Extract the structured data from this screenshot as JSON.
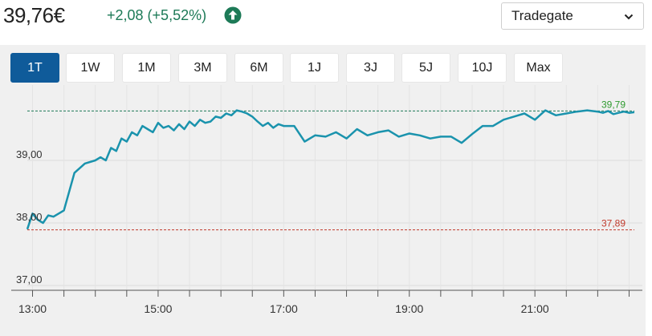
{
  "header": {
    "price": "39,76€",
    "change": "+2,08 (+5,52%)",
    "trend_icon": "arrow-up-circle-icon",
    "trend_color": "#1d7a57"
  },
  "exchange": {
    "selected": "Tradegate",
    "icon": "chevron-down-icon"
  },
  "range_tabs": [
    {
      "label": "1T",
      "active": true
    },
    {
      "label": "1W",
      "active": false
    },
    {
      "label": "1M",
      "active": false
    },
    {
      "label": "3M",
      "active": false
    },
    {
      "label": "6M",
      "active": false
    },
    {
      "label": "1J",
      "active": false
    },
    {
      "label": "3J",
      "active": false
    },
    {
      "label": "5J",
      "active": false
    },
    {
      "label": "10J",
      "active": false
    },
    {
      "label": "Max",
      "active": false
    }
  ],
  "colors": {
    "line": "#1a93ad",
    "high_line": "#1d7a57",
    "high_label": "#2e9a2e",
    "low_line": "#c0392b",
    "low_label": "#c0392b",
    "active_tab": "#0f5b9a"
  },
  "chart_data": {
    "type": "line",
    "grid": true,
    "ylim": [
      37.0,
      40.0
    ],
    "xlim": [
      "12:55",
      "22:35"
    ],
    "x_ticks": [
      "13:00",
      "15:00",
      "17:00",
      "19:00",
      "21:00"
    ],
    "y_ticks": [
      {
        "value": 37.0,
        "label": "37,00"
      },
      {
        "value": 38.0,
        "label": "38,00"
      },
      {
        "value": 39.0,
        "label": "39,00"
      }
    ],
    "reference_lines": [
      {
        "value": 39.79,
        "label": "39,79",
        "kind": "high"
      },
      {
        "value": 37.89,
        "label": "37,89",
        "kind": "low"
      }
    ],
    "series": [
      {
        "x": [
          "12:55",
          "13:00",
          "13:05",
          "13:10",
          "13:15",
          "13:20",
          "13:25",
          "13:30",
          "13:40",
          "13:50",
          "14:00",
          "14:05",
          "14:10",
          "14:15",
          "14:20",
          "14:25",
          "14:30",
          "14:35",
          "14:40",
          "14:45",
          "14:50",
          "14:55",
          "15:00",
          "15:05",
          "15:10",
          "15:15",
          "15:20",
          "15:25",
          "15:30",
          "15:35",
          "15:40",
          "15:45",
          "15:50",
          "15:55",
          "16:00",
          "16:05",
          "16:10",
          "16:15",
          "16:20",
          "16:25",
          "16:30",
          "16:35",
          "16:40",
          "16:45",
          "16:50",
          "16:55",
          "17:00",
          "17:10",
          "17:20",
          "17:30",
          "17:40",
          "17:50",
          "18:00",
          "18:10",
          "18:20",
          "18:30",
          "18:40",
          "18:50",
          "19:00",
          "19:10",
          "19:20",
          "19:30",
          "19:40",
          "19:50",
          "20:00",
          "20:10",
          "20:20",
          "20:30",
          "20:40",
          "20:50",
          "21:00",
          "21:10",
          "21:20",
          "21:30",
          "21:40",
          "21:50",
          "22:00",
          "22:05",
          "22:10",
          "22:15",
          "22:20",
          "22:25",
          "22:30",
          "22:35"
        ],
        "y": [
          37.9,
          38.15,
          38.05,
          38.0,
          38.12,
          38.1,
          38.15,
          38.2,
          38.8,
          38.95,
          39.0,
          39.05,
          39.0,
          39.2,
          39.15,
          39.35,
          39.3,
          39.45,
          39.4,
          39.55,
          39.5,
          39.45,
          39.6,
          39.52,
          39.55,
          39.48,
          39.58,
          39.5,
          39.62,
          39.55,
          39.65,
          39.6,
          39.62,
          39.7,
          39.68,
          39.75,
          39.72,
          39.8,
          39.78,
          39.75,
          39.7,
          39.62,
          39.55,
          39.6,
          39.52,
          39.58,
          39.55,
          39.55,
          39.3,
          39.4,
          39.38,
          39.45,
          39.35,
          39.5,
          39.4,
          39.45,
          39.48,
          39.38,
          39.43,
          39.4,
          39.35,
          39.38,
          39.38,
          39.28,
          39.42,
          39.55,
          39.55,
          39.65,
          39.7,
          39.75,
          39.65,
          39.8,
          39.72,
          39.75,
          39.78,
          39.8,
          39.78,
          39.76,
          39.79,
          39.74,
          39.76,
          39.78,
          39.76,
          39.77
        ]
      }
    ]
  }
}
